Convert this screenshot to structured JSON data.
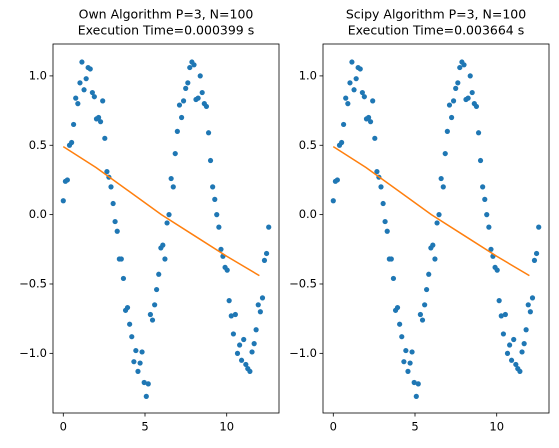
{
  "chart_data": [
    {
      "type": "scatter",
      "title": [
        "Own Algorithm P=3, N=100",
        "Execution Time=0.000399 s"
      ],
      "xlim": [
        -0.63,
        13.2
      ],
      "ylim": [
        -1.43,
        1.23
      ],
      "xticks": [
        0,
        5,
        10
      ],
      "yticks": [
        {
          "value": -1,
          "label": "−1.0"
        },
        {
          "value": -0.5,
          "label": "−0.5"
        },
        {
          "value": 0,
          "label": "0.0"
        },
        0.5,
        {
          "value": 1,
          "label": "1.0"
        }
      ],
      "series": [
        {
          "type": "scatter",
          "color": "#1f77b4",
          "x": [
            0.0,
            0.13,
            0.25,
            0.38,
            0.51,
            0.63,
            0.76,
            0.89,
            1.02,
            1.14,
            1.27,
            1.4,
            1.52,
            1.65,
            1.78,
            1.9,
            2.03,
            2.16,
            2.28,
            2.41,
            2.54,
            2.67,
            2.79,
            2.92,
            3.05,
            3.17,
            3.3,
            3.43,
            3.55,
            3.68,
            3.81,
            3.93,
            4.06,
            4.19,
            4.32,
            4.44,
            4.57,
            4.7,
            4.82,
            4.95,
            5.08,
            5.2,
            5.33,
            5.46,
            5.59,
            5.71,
            5.84,
            5.97,
            6.09,
            6.22,
            6.35,
            6.47,
            6.6,
            6.73,
            6.85,
            6.98,
            7.11,
            7.24,
            7.36,
            7.49,
            7.62,
            7.74,
            7.87,
            8.0,
            8.12,
            8.25,
            8.38,
            8.5,
            8.63,
            8.76,
            8.89,
            9.01,
            9.14,
            9.27,
            9.39,
            9.52,
            9.65,
            9.77,
            9.9,
            10.03,
            10.15,
            10.28,
            10.41,
            10.53,
            10.66,
            10.79,
            10.91,
            11.04,
            11.17,
            11.29,
            11.42,
            11.55,
            11.68,
            11.8,
            11.93,
            12.06,
            12.19,
            12.31,
            12.44,
            12.57
          ],
          "values": [
            0.1,
            0.24,
            0.25,
            0.5,
            0.52,
            0.65,
            0.84,
            0.8,
            0.95,
            1.1,
            0.9,
            0.98,
            1.06,
            1.05,
            0.88,
            0.85,
            0.69,
            0.7,
            0.67,
            0.82,
            0.55,
            0.31,
            0.27,
            0.2,
            0.08,
            -0.05,
            -0.12,
            -0.32,
            -0.32,
            -0.46,
            -0.69,
            -0.67,
            -0.79,
            -0.88,
            -1.06,
            -0.98,
            -1.13,
            -1.07,
            -0.99,
            -1.21,
            -1.31,
            -1.22,
            -0.72,
            -0.76,
            -0.65,
            -0.54,
            -0.43,
            -0.24,
            -0.22,
            -0.32,
            -0.06,
            0.0,
            0.26,
            0.2,
            0.44,
            0.6,
            0.79,
            0.7,
            0.82,
            0.91,
            0.95,
            1.06,
            1.1,
            1.08,
            0.83,
            0.84,
            1.0,
            0.88,
            0.8,
            0.78,
            0.59,
            0.39,
            0.2,
            0.11,
            0.0,
            -0.09,
            -0.25,
            -0.3,
            -0.38,
            -0.4,
            -0.62,
            -0.73,
            -0.86,
            -0.72,
            -1.0,
            -0.94,
            -1.05,
            -0.9,
            -1.08,
            -1.11,
            -1.13,
            -0.99,
            -0.93,
            -0.83,
            -0.65,
            -0.7,
            -0.6,
            -0.33,
            -0.28,
            -0.09
          ]
        },
        {
          "type": "line",
          "color": "#ff7f0e",
          "x": [
            0,
            2,
            4,
            6,
            8,
            10,
            12
          ],
          "values": [
            0.49,
            0.34,
            0.17,
            0.0,
            -0.15,
            -0.3,
            -0.44
          ]
        }
      ]
    },
    {
      "type": "scatter",
      "title": [
        "Scipy Algorithm P=3, N=100",
        "Execution Time=0.003664 s"
      ],
      "xlim": [
        -0.63,
        13.2
      ],
      "ylim": [
        -1.43,
        1.23
      ],
      "xticks": [
        0,
        5,
        10
      ],
      "yticks": [
        {
          "value": -1,
          "label": "−1.0"
        },
        {
          "value": -0.5,
          "label": "−0.5"
        },
        {
          "value": 0,
          "label": "0.0"
        },
        0.5,
        {
          "value": 1,
          "label": "1.0"
        }
      ],
      "series": [
        {
          "type": "scatter",
          "color": "#1f77b4",
          "x": [
            0.0,
            0.13,
            0.25,
            0.38,
            0.51,
            0.63,
            0.76,
            0.89,
            1.02,
            1.14,
            1.27,
            1.4,
            1.52,
            1.65,
            1.78,
            1.9,
            2.03,
            2.16,
            2.28,
            2.41,
            2.54,
            2.67,
            2.79,
            2.92,
            3.05,
            3.17,
            3.3,
            3.43,
            3.55,
            3.68,
            3.81,
            3.93,
            4.06,
            4.19,
            4.32,
            4.44,
            4.57,
            4.7,
            4.82,
            4.95,
            5.08,
            5.2,
            5.33,
            5.46,
            5.59,
            5.71,
            5.84,
            5.97,
            6.09,
            6.22,
            6.35,
            6.47,
            6.6,
            6.73,
            6.85,
            6.98,
            7.11,
            7.24,
            7.36,
            7.49,
            7.62,
            7.74,
            7.87,
            8.0,
            8.12,
            8.25,
            8.38,
            8.5,
            8.63,
            8.76,
            8.89,
            9.01,
            9.14,
            9.27,
            9.39,
            9.52,
            9.65,
            9.77,
            9.9,
            10.03,
            10.15,
            10.28,
            10.41,
            10.53,
            10.66,
            10.79,
            10.91,
            11.04,
            11.17,
            11.29,
            11.42,
            11.55,
            11.68,
            11.8,
            11.93,
            12.06,
            12.19,
            12.31,
            12.44,
            12.57
          ],
          "values": [
            0.1,
            0.24,
            0.25,
            0.5,
            0.52,
            0.65,
            0.84,
            0.8,
            0.95,
            1.1,
            0.9,
            0.98,
            1.06,
            1.05,
            0.88,
            0.85,
            0.69,
            0.7,
            0.67,
            0.82,
            0.55,
            0.31,
            0.27,
            0.2,
            0.08,
            -0.05,
            -0.12,
            -0.32,
            -0.32,
            -0.46,
            -0.69,
            -0.67,
            -0.79,
            -0.88,
            -1.06,
            -0.98,
            -1.13,
            -1.07,
            -0.99,
            -1.21,
            -1.31,
            -1.22,
            -0.72,
            -0.76,
            -0.65,
            -0.54,
            -0.43,
            -0.24,
            -0.22,
            -0.32,
            -0.06,
            0.0,
            0.26,
            0.2,
            0.44,
            0.6,
            0.79,
            0.7,
            0.82,
            0.91,
            0.95,
            1.06,
            1.1,
            1.08,
            0.83,
            0.84,
            1.0,
            0.88,
            0.8,
            0.78,
            0.59,
            0.39,
            0.2,
            0.11,
            0.0,
            -0.09,
            -0.25,
            -0.3,
            -0.38,
            -0.4,
            -0.62,
            -0.73,
            -0.86,
            -0.72,
            -1.0,
            -0.94,
            -1.05,
            -0.9,
            -1.08,
            -1.11,
            -1.13,
            -0.99,
            -0.93,
            -0.83,
            -0.65,
            -0.7,
            -0.6,
            -0.33,
            -0.28,
            -0.09
          ]
        },
        {
          "type": "line",
          "color": "#ff7f0e",
          "x": [
            0,
            2,
            4,
            6,
            8,
            10,
            12
          ],
          "values": [
            0.49,
            0.34,
            0.17,
            0.0,
            -0.15,
            -0.3,
            -0.44
          ]
        }
      ]
    }
  ]
}
